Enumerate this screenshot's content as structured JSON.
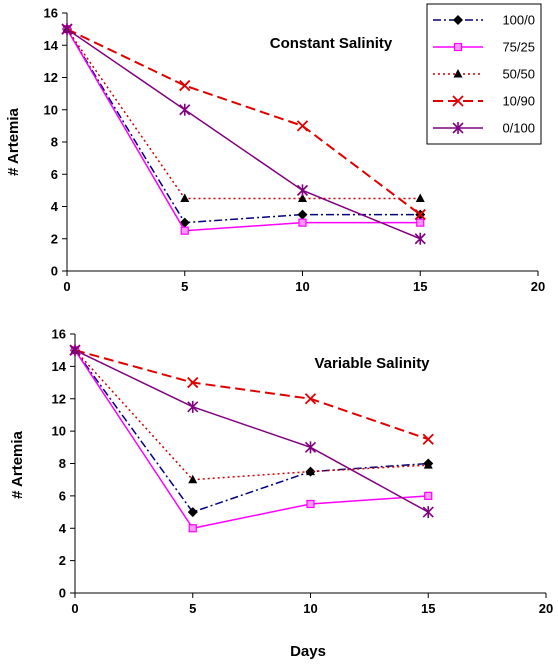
{
  "chart_data": [
    {
      "type": "line",
      "title": "Constant Salinity",
      "xlabel": "",
      "ylabel": "# Artemia",
      "xlim": [
        0,
        20
      ],
      "ylim": [
        0,
        16
      ],
      "xticks": [
        "0",
        "5",
        "10",
        "15",
        "20"
      ],
      "yticks": [
        "0",
        "2",
        "4",
        "6",
        "8",
        "10",
        "12",
        "14",
        "16"
      ],
      "grid": false,
      "legend": "top-right",
      "x": [
        0,
        5,
        10,
        15
      ],
      "series": [
        {
          "name": "100/0",
          "values": [
            15,
            3,
            3.5,
            3.5
          ],
          "color": "#000080",
          "dash": "8 3 2 3",
          "marker": "diamond"
        },
        {
          "name": "75/25",
          "values": [
            15,
            2.5,
            3,
            3
          ],
          "color": "#ff00ff",
          "dash": "",
          "marker": "square"
        },
        {
          "name": "50/50",
          "values": [
            15,
            4.5,
            4.5,
            4.5
          ],
          "color": "#cc0000",
          "dash": "2 3",
          "marker": "triangle"
        },
        {
          "name": "10/90",
          "values": [
            15,
            11.5,
            9,
            3.5
          ],
          "color": "#e00000",
          "dash": "10 5",
          "marker": "x"
        },
        {
          "name": "0/100",
          "values": [
            15,
            10,
            5,
            2
          ],
          "color": "#800080",
          "dash": "",
          "marker": "star"
        }
      ]
    },
    {
      "type": "line",
      "title": "Variable Salinity",
      "xlabel": "Days",
      "ylabel": "# Artemia",
      "xlim": [
        0,
        20
      ],
      "ylim": [
        0,
        16
      ],
      "xticks": [
        "0",
        "5",
        "10",
        "15",
        "20"
      ],
      "yticks": [
        "0",
        "2",
        "4",
        "6",
        "8",
        "10",
        "12",
        "14",
        "16"
      ],
      "grid": false,
      "x": [
        0,
        5,
        10,
        15
      ],
      "series": [
        {
          "name": "100/0",
          "values": [
            15,
            5,
            7.5,
            8
          ],
          "color": "#000080",
          "dash": "8 3 2 3",
          "marker": "diamond"
        },
        {
          "name": "75/25",
          "values": [
            15,
            4,
            5.5,
            6
          ],
          "color": "#ff00ff",
          "dash": "",
          "marker": "square"
        },
        {
          "name": "50/50",
          "values": [
            15,
            7,
            7.5,
            7.9
          ],
          "color": "#cc0000",
          "dash": "2 3",
          "marker": "triangle"
        },
        {
          "name": "10/90",
          "values": [
            15,
            13,
            12,
            9.5
          ],
          "color": "#e00000",
          "dash": "10 5",
          "marker": "x"
        },
        {
          "name": "0/100",
          "values": [
            15,
            11.5,
            9,
            5
          ],
          "color": "#800080",
          "dash": "",
          "marker": "star"
        }
      ]
    }
  ]
}
